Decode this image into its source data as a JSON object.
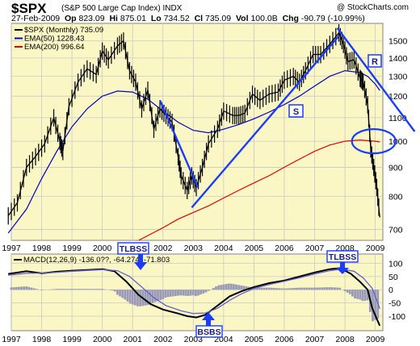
{
  "header": {
    "symbol": "$SPX",
    "name": "(S&P 500 Large Cap Index)",
    "exchange": "INDX",
    "watermark": "@ StockCharts.com",
    "date": "27-Feb-2009",
    "open_label": "Op",
    "open": "823.09",
    "high_label": "Hi",
    "high": "875.01",
    "low_label": "Lo",
    "low": "734.52",
    "close_label": "Cl",
    "close": "735.09",
    "volume_label": "Vol",
    "volume": "100.0B",
    "change_label": "Chg",
    "change": "-90.79 (-10.99%)"
  },
  "colors": {
    "plot_bg": "#fbf7c5",
    "frame": "#808080",
    "price": "#000000",
    "ema50": "#0000c0",
    "ema200": "#e00000",
    "trendline": "#1a3cff",
    "macd": "#000000",
    "signal": "#6060d0",
    "histogram": "#9a9ab8",
    "annotation": "#1a3cff"
  },
  "legend": {
    "items": [
      {
        "name": "$SPX (Monthly) 735.09",
        "color": "#000000"
      },
      {
        "name": "EMA(50) 1228.43",
        "color": "#0000c0"
      },
      {
        "name": "EMA(200) 996.64",
        "color": "#e00000"
      }
    ],
    "macd_label": "MACD(12,26,9)",
    "macd_values": "-136.0??, -64.274, -71.803"
  },
  "annotations": {
    "s_label": "S",
    "r_label": "R",
    "tlbss_top_left": "TLBSS",
    "tlbss_top_right": "TLBSS",
    "bsbs": "BSBS"
  },
  "chart_data": [
    {
      "type": "line",
      "title": "$SPX (Monthly) 735.09",
      "x_range": [
        1997,
        2009.25
      ],
      "x_ticks": [
        "1997",
        "1998",
        "1999",
        "2000",
        "2001",
        "2002",
        "2003",
        "2004",
        "2005",
        "2006",
        "2007",
        "2008",
        "2009"
      ],
      "ylim": [
        670,
        1610
      ],
      "y_scale": "log",
      "y_ticks": [
        700,
        800,
        900,
        1000,
        1100,
        1200,
        1300,
        1400,
        1500
      ],
      "grid": true,
      "legend_position": "top-left",
      "series": [
        {
          "name": "$SPX (Monthly) 735.09",
          "points": [
            [
              1996.9,
              740
            ],
            [
              1997.2,
              780
            ],
            [
              1997.5,
              900
            ],
            [
              1997.8,
              940
            ],
            [
              1998.1,
              990
            ],
            [
              1998.4,
              1100
            ],
            [
              1998.6,
              1000
            ],
            [
              1998.7,
              960
            ],
            [
              1998.9,
              1150
            ],
            [
              1999.2,
              1270
            ],
            [
              1999.5,
              1340
            ],
            [
              1999.8,
              1310
            ],
            [
              2000.0,
              1440
            ],
            [
              2000.2,
              1390
            ],
            [
              2000.5,
              1470
            ],
            [
              2000.7,
              1500
            ],
            [
              2000.9,
              1330
            ],
            [
              2001.1,
              1270
            ],
            [
              2001.3,
              1140
            ],
            [
              2001.5,
              1230
            ],
            [
              2001.7,
              1050
            ],
            [
              2001.9,
              1140
            ],
            [
              2002.1,
              1110
            ],
            [
              2002.3,
              1080
            ],
            [
              2002.5,
              940
            ],
            [
              2002.6,
              870
            ],
            [
              2002.8,
              820
            ],
            [
              2002.95,
              870
            ],
            [
              2003.1,
              830
            ],
            [
              2003.3,
              900
            ],
            [
              2003.5,
              990
            ],
            [
              2003.8,
              1050
            ],
            [
              2004.0,
              1130
            ],
            [
              2004.3,
              1110
            ],
            [
              2004.5,
              1110
            ],
            [
              2004.7,
              1120
            ],
            [
              2004.95,
              1210
            ],
            [
              2005.2,
              1180
            ],
            [
              2005.5,
              1210
            ],
            [
              2005.8,
              1220
            ],
            [
              2006.0,
              1280
            ],
            [
              2006.3,
              1300
            ],
            [
              2006.5,
              1270
            ],
            [
              2006.7,
              1330
            ],
            [
              2006.95,
              1420
            ],
            [
              2007.2,
              1420
            ],
            [
              2007.5,
              1480
            ],
            [
              2007.8,
              1550
            ],
            [
              2007.95,
              1480
            ],
            [
              2008.1,
              1380
            ],
            [
              2008.3,
              1390
            ],
            [
              2008.5,
              1290
            ],
            [
              2008.6,
              1270
            ],
            [
              2008.75,
              1160
            ],
            [
              2008.85,
              970
            ],
            [
              2008.95,
              900
            ],
            [
              2009.05,
              830
            ],
            [
              2009.15,
              735
            ]
          ]
        },
        {
          "name": "EMA(50) 1228.43",
          "points": [
            [
              1996.9,
              690
            ],
            [
              1997.5,
              760
            ],
            [
              1998.0,
              860
            ],
            [
              1998.5,
              960
            ],
            [
              1999.0,
              1060
            ],
            [
              1999.5,
              1140
            ],
            [
              2000.0,
              1200
            ],
            [
              2000.5,
              1225
            ],
            [
              2001.0,
              1220
            ],
            [
              2001.5,
              1185
            ],
            [
              2002.0,
              1130
            ],
            [
              2002.5,
              1080
            ],
            [
              2003.0,
              1045
            ],
            [
              2003.5,
              1035
            ],
            [
              2004.0,
              1050
            ],
            [
              2004.5,
              1070
            ],
            [
              2005.0,
              1095
            ],
            [
              2005.5,
              1125
            ],
            [
              2006.0,
              1160
            ],
            [
              2006.5,
              1200
            ],
            [
              2007.0,
              1250
            ],
            [
              2007.5,
              1300
            ],
            [
              2008.0,
              1330
            ],
            [
              2008.5,
              1320
            ],
            [
              2008.75,
              1300
            ],
            [
              2009.0,
              1260
            ],
            [
              2009.15,
              1228
            ]
          ]
        },
        {
          "name": "EMA(200) 996.64",
          "points": [
            [
              2001.2,
              670
            ],
            [
              2002.0,
              705
            ],
            [
              2002.5,
              730
            ],
            [
              2003.0,
              750
            ],
            [
              2003.5,
              770
            ],
            [
              2004.0,
              795
            ],
            [
              2004.5,
              820
            ],
            [
              2005.0,
              845
            ],
            [
              2005.5,
              870
            ],
            [
              2006.0,
              900
            ],
            [
              2006.5,
              930
            ],
            [
              2007.0,
              960
            ],
            [
              2007.5,
              985
            ],
            [
              2008.0,
              1000
            ],
            [
              2008.5,
              1005
            ],
            [
              2009.0,
              1000
            ],
            [
              2009.15,
              997
            ]
          ]
        }
      ],
      "trendlines": [
        {
          "from": [
            2001.9,
            1180
          ],
          "to": [
            2003.15,
            830
          ]
        },
        {
          "from": [
            2002.95,
            765
          ],
          "to": [
            2007.8,
            1530
          ]
        },
        {
          "from": [
            2007.75,
            1580
          ],
          "to": [
            2010.3,
            1040
          ]
        }
      ]
    },
    {
      "type": "line",
      "title": "MACD(12,26,9)",
      "x_range": [
        1997,
        2009.25
      ],
      "ylim": [
        -155,
        135
      ],
      "y_ticks": [
        100,
        50,
        0,
        -50,
        -100
      ],
      "grid": true,
      "series": [
        {
          "name": "MACD",
          "points": [
            [
              1996.9,
              60
            ],
            [
              1997.5,
              70
            ],
            [
              1998.0,
              62
            ],
            [
              1998.5,
              68
            ],
            [
              1999.0,
              72
            ],
            [
              1999.5,
              75
            ],
            [
              2000.0,
              78
            ],
            [
              2000.4,
              70
            ],
            [
              2000.8,
              30
            ],
            [
              2001.2,
              -20
            ],
            [
              2001.6,
              -55
            ],
            [
              2002.0,
              -75
            ],
            [
              2002.5,
              -90
            ],
            [
              2002.8,
              -100
            ],
            [
              2003.1,
              -105
            ],
            [
              2003.4,
              -95
            ],
            [
              2003.8,
              -60
            ],
            [
              2004.2,
              -25
            ],
            [
              2004.6,
              -5
            ],
            [
              2005.0,
              10
            ],
            [
              2005.5,
              25
            ],
            [
              2006.0,
              35
            ],
            [
              2006.5,
              50
            ],
            [
              2007.0,
              65
            ],
            [
              2007.5,
              78
            ],
            [
              2007.85,
              82
            ],
            [
              2008.2,
              60
            ],
            [
              2008.5,
              30
            ],
            [
              2008.75,
              0
            ],
            [
              2008.9,
              -70
            ],
            [
              2009.05,
              -110
            ],
            [
              2009.15,
              -136
            ]
          ]
        },
        {
          "name": "Signal",
          "points": [
            [
              1996.9,
              55
            ],
            [
              1997.5,
              62
            ],
            [
              1998.0,
              63
            ],
            [
              1998.5,
              66
            ],
            [
              1999.0,
              70
            ],
            [
              1999.5,
              73
            ],
            [
              2000.0,
              76
            ],
            [
              2000.5,
              72
            ],
            [
              2000.9,
              50
            ],
            [
              2001.3,
              10
            ],
            [
              2001.7,
              -30
            ],
            [
              2002.1,
              -60
            ],
            [
              2002.6,
              -80
            ],
            [
              2003.0,
              -90
            ],
            [
              2003.4,
              -88
            ],
            [
              2003.8,
              -70
            ],
            [
              2004.2,
              -40
            ],
            [
              2004.6,
              -15
            ],
            [
              2005.0,
              5
            ],
            [
              2005.5,
              20
            ],
            [
              2006.0,
              32
            ],
            [
              2006.5,
              45
            ],
            [
              2007.0,
              60
            ],
            [
              2007.5,
              72
            ],
            [
              2007.9,
              78
            ],
            [
              2008.3,
              70
            ],
            [
              2008.6,
              45
            ],
            [
              2008.9,
              5
            ],
            [
              2009.05,
              -40
            ],
            [
              2009.15,
              -72
            ]
          ]
        }
      ]
    }
  ]
}
